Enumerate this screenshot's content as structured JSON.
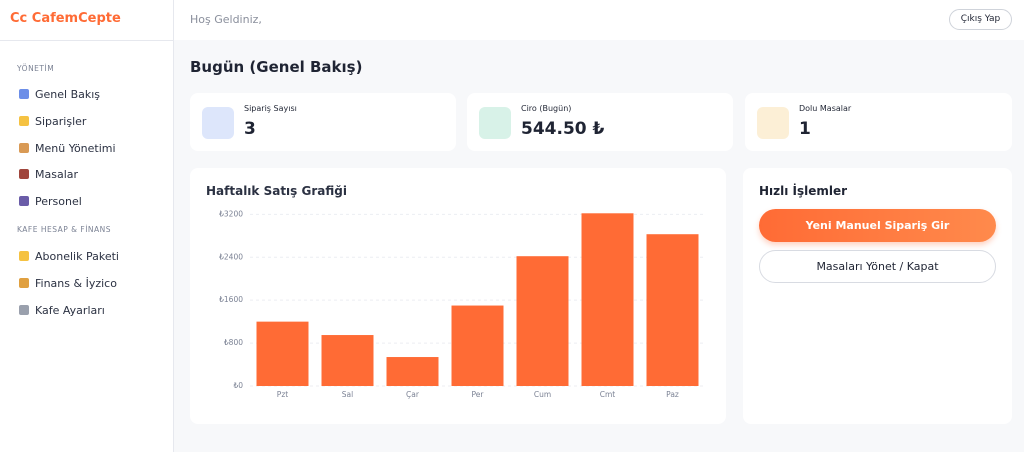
{
  "brand": "Cc CafemCepte",
  "header": {
    "greeting": "Hoş Geldiniz,",
    "logout": "Çıkış Yap"
  },
  "sidebar": {
    "sections": [
      {
        "title": "YÖNETİM",
        "items": [
          "Genel Bakış",
          "Siparişler",
          "Menü Yönetimi",
          "Masalar",
          "Personel"
        ]
      },
      {
        "title": "KAFE HESAP & FİNANS",
        "items": [
          "Abonelik Paketi",
          "Finans & İyzico",
          "Kafe Ayarları"
        ]
      }
    ]
  },
  "page_title": "Bugün (Genel Bakış)",
  "stats": [
    {
      "label": "Sipariş Sayısı",
      "value": "3"
    },
    {
      "label": "Ciro (Bugün)",
      "value": "544.50 ₺"
    },
    {
      "label": "Dolu Masalar",
      "value": "1"
    }
  ],
  "chart_data": {
    "type": "bar",
    "title": "Haftalık Satış Grafiği",
    "categories": [
      "Pzt",
      "Sal",
      "Çar",
      "Per",
      "Cum",
      "Cmt",
      "Paz"
    ],
    "values": [
      1200,
      950,
      540,
      1500,
      2420,
      3220,
      2830
    ],
    "color": "#ff6b35",
    "ylim": [
      0,
      3300
    ],
    "yticks": [
      {
        "value": 0,
        "label": "₺0"
      },
      {
        "value": 800,
        "label": "₺800"
      },
      {
        "value": 1600,
        "label": "₺1600"
      },
      {
        "value": 2400,
        "label": "₺2400"
      },
      {
        "value": 3200,
        "label": "₺3200"
      }
    ],
    "grid": true
  },
  "quick_actions": {
    "title": "Hızlı İşlemler",
    "buttons": [
      "Yeni Manuel Sipariş Gir",
      "Masaları Yönet / Kapat"
    ]
  }
}
